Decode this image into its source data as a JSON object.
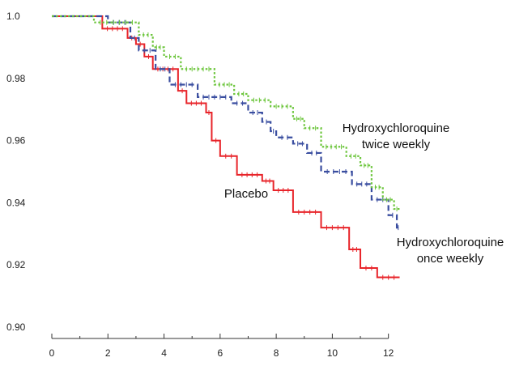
{
  "chart_data": {
    "type": "line",
    "title": "",
    "xlabel": "",
    "ylabel": "",
    "xlim": [
      0,
      12.5
    ],
    "ylim": [
      0.9,
      1.0
    ],
    "grid": false,
    "legend": "none (direct labels)",
    "x_ticks": [
      0,
      2,
      4,
      6,
      8,
      10,
      12
    ],
    "x_tick_labels": [
      "0",
      "2",
      "4",
      "6",
      "8",
      "10",
      "12"
    ],
    "y_ticks": [
      1.0,
      0.98,
      0.96,
      0.94,
      0.92,
      0.9
    ],
    "y_tick_labels": [
      "1.0",
      "0.98",
      "0.96",
      "0.94",
      "0.92",
      "0.90"
    ],
    "annotations": [
      {
        "id": "placebo",
        "lines": [
          "Placebo"
        ]
      },
      {
        "id": "twice",
        "lines": [
          "Hydroxychloroquine",
          "twice weekly"
        ]
      },
      {
        "id": "once",
        "lines": [
          "Hydroxychloroquine",
          "once weekly"
        ]
      }
    ],
    "series": [
      {
        "name": "Placebo",
        "color": "#e8242a",
        "dash": "solid",
        "x": [
          0,
          1.8,
          2.7,
          3.0,
          3.3,
          3.6,
          4.5,
          4.8,
          5.5,
          5.7,
          6.0,
          6.6,
          7.5,
          7.9,
          8.6,
          9.6,
          10.6,
          11.0,
          11.6
        ],
        "y": [
          1.0,
          0.996,
          0.993,
          0.991,
          0.987,
          0.983,
          0.976,
          0.972,
          0.969,
          0.96,
          0.955,
          0.949,
          0.947,
          0.944,
          0.937,
          0.932,
          0.925,
          0.919,
          0.916
        ],
        "end_x": 12.4
      },
      {
        "name": "Hydroxychloroquine once weekly",
        "color": "#3a4ea0",
        "dash": "dashed",
        "x": [
          0,
          2.0,
          2.8,
          3.1,
          3.7,
          4.2,
          5.2,
          6.4,
          7.0,
          7.5,
          7.8,
          8.0,
          8.6,
          9.1,
          9.6,
          10.7,
          11.4,
          12.0,
          12.3
        ],
        "y": [
          1.0,
          0.998,
          0.993,
          0.989,
          0.983,
          0.978,
          0.974,
          0.972,
          0.969,
          0.966,
          0.963,
          0.961,
          0.959,
          0.956,
          0.95,
          0.946,
          0.941,
          0.936,
          0.932
        ],
        "end_x": 12.4
      },
      {
        "name": "Hydroxychloroquine twice weekly",
        "color": "#6ec63e",
        "dash": "dotted",
        "x": [
          0,
          1.5,
          3.1,
          3.6,
          4.0,
          4.6,
          5.8,
          6.5,
          7.0,
          7.8,
          8.6,
          9.0,
          9.6,
          10.5,
          11.0,
          11.4,
          11.8,
          12.2
        ],
        "y": [
          1.0,
          0.998,
          0.994,
          0.99,
          0.987,
          0.983,
          0.978,
          0.975,
          0.973,
          0.971,
          0.967,
          0.964,
          0.958,
          0.955,
          0.952,
          0.945,
          0.941,
          0.938
        ],
        "end_x": 12.4
      }
    ]
  }
}
